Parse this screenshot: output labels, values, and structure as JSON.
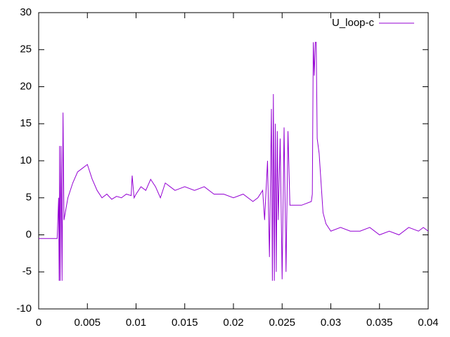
{
  "chart_data": {
    "type": "line",
    "x": [
      0,
      0.0019,
      0.00205,
      0.0021,
      0.00215,
      0.0022,
      0.0023,
      0.0024,
      0.0025,
      0.0026,
      0.003,
      0.0035,
      0.004,
      0.0045,
      0.005,
      0.0055,
      0.006,
      0.0065,
      0.007,
      0.0075,
      0.008,
      0.0085,
      0.009,
      0.0095,
      0.0096,
      0.0098,
      0.01,
      0.0105,
      0.011,
      0.0115,
      0.012,
      0.0125,
      0.013,
      0.0135,
      0.014,
      0.015,
      0.016,
      0.017,
      0.018,
      0.019,
      0.02,
      0.021,
      0.022,
      0.0225,
      0.023,
      0.0232,
      0.0235,
      0.0237,
      0.0239,
      0.024,
      0.0241,
      0.0242,
      0.0243,
      0.0244,
      0.0245,
      0.0246,
      0.0248,
      0.025,
      0.0252,
      0.0254,
      0.0256,
      0.0258,
      0.026,
      0.027,
      0.028,
      0.0281,
      0.0282,
      0.0283,
      0.0284,
      0.0285,
      0.0286,
      0.0288,
      0.029,
      0.0292,
      0.0295,
      0.03,
      0.031,
      0.032,
      0.033,
      0.034,
      0.035,
      0.036,
      0.037,
      0.038,
      0.039,
      0.0395,
      0.04
    ],
    "series": [
      {
        "name": "U_loop-c",
        "color": "#9400d3",
        "values": [
          -0.5,
          -0.5,
          5,
          -6.2,
          12,
          -6.2,
          12,
          -6.2,
          16.5,
          2,
          5,
          7,
          8.5,
          9,
          9.5,
          7.5,
          6,
          5,
          5.5,
          4.8,
          5.2,
          5,
          5.5,
          5.3,
          8,
          5,
          5.5,
          6.5,
          6,
          7.5,
          6.5,
          5,
          7,
          6.5,
          6,
          6.5,
          6,
          6.5,
          5.5,
          5.5,
          5,
          5.5,
          4.5,
          5,
          6,
          2,
          10,
          -3,
          17,
          -6.2,
          19,
          -6.2,
          15,
          -5,
          14,
          2,
          13,
          -6,
          14.5,
          -5,
          14,
          4,
          4,
          4,
          4.5,
          5.5,
          26,
          21.5,
          26,
          26,
          13,
          11,
          7,
          3,
          1.5,
          0.5,
          1,
          0.5,
          0.5,
          1,
          0,
          0.5,
          0,
          1,
          0.5,
          1,
          0.5
        ]
      }
    ],
    "xlim": [
      0,
      0.04
    ],
    "xticks": [
      0,
      0.005,
      0.01,
      0.015,
      0.02,
      0.025,
      0.03,
      0.035,
      0.04
    ],
    "ylim": [
      -10,
      30
    ],
    "yticks": [
      -10,
      -5,
      0,
      5,
      10,
      15,
      20,
      25,
      30
    ],
    "legend": "top-right",
    "grid": false
  }
}
